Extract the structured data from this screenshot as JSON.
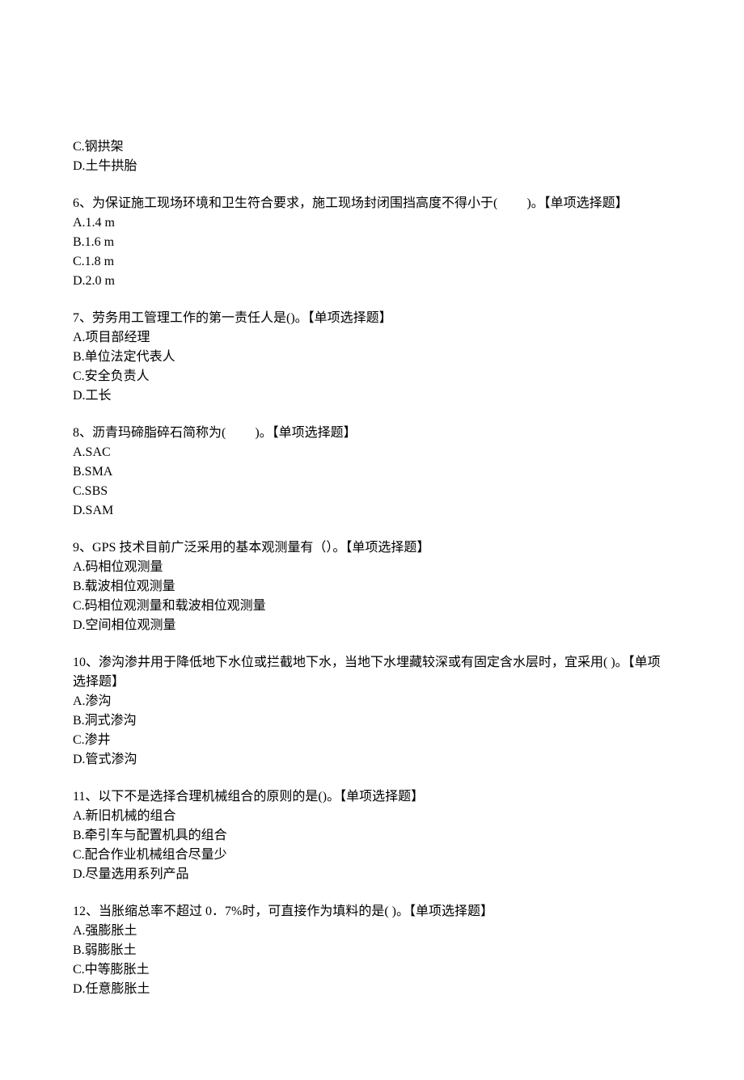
{
  "orphan_options": [
    {
      "label": "C.钢拱架"
    },
    {
      "label": "D.土牛拱胎"
    }
  ],
  "questions": [
    {
      "number": "6、",
      "text": "为保证施工现场环境和卫生符合要求，施工现场封闭围挡高度不得小于(　　 )。【单项选择题】",
      "options": [
        {
          "label": "A.1.4 m"
        },
        {
          "label": "B.1.6 m"
        },
        {
          "label": "C.1.8 m"
        },
        {
          "label": "D.2.0 m"
        }
      ]
    },
    {
      "number": "7、",
      "text": "劳务用工管理工作的第一责任人是()。【单项选择题】",
      "options": [
        {
          "label": "A.项目部经理"
        },
        {
          "label": "B.单位法定代表人"
        },
        {
          "label": "C.安全负责人"
        },
        {
          "label": "D.工长"
        }
      ]
    },
    {
      "number": "8、",
      "text": "沥青玛碲脂碎石简称为(　　 )。【单项选择题】",
      "options": [
        {
          "label": "A.SAC"
        },
        {
          "label": "B.SMA"
        },
        {
          "label": "C.SBS"
        },
        {
          "label": "D.SAM"
        }
      ]
    },
    {
      "number": "9、",
      "text": "GPS 技术目前广泛采用的基本观测量有（）。【单项选择题】",
      "options": [
        {
          "label": "A.码相位观测量"
        },
        {
          "label": "B.载波相位观测量"
        },
        {
          "label": "C.码相位观测量和载波相位观测量"
        },
        {
          "label": "D.空间相位观测量"
        }
      ]
    },
    {
      "number": "10、",
      "text": "渗沟渗井用于降低地下水位或拦截地下水，当地下水埋藏较深或有固定含水层时，宜采用( )。【单项选择题】",
      "options": [
        {
          "label": "A.渗沟"
        },
        {
          "label": "B.洞式渗沟"
        },
        {
          "label": "C.渗井"
        },
        {
          "label": "D.管式渗沟"
        }
      ]
    },
    {
      "number": "11、",
      "text": "以下不是选择合理机械组合的原则的是()。【单项选择题】",
      "options": [
        {
          "label": "A.新旧机械的组合"
        },
        {
          "label": "B.牵引车与配置机具的组合"
        },
        {
          "label": "C.配合作业机械组合尽量少"
        },
        {
          "label": "D.尽量选用系列产品"
        }
      ]
    },
    {
      "number": "12、",
      "text": "当胀缩总率不超过 0．7%时，可直接作为填料的是( )。【单项选择题】",
      "options": [
        {
          "label": "A.强膨胀土"
        },
        {
          "label": "B.弱膨胀土"
        },
        {
          "label": "C.中等膨胀土"
        },
        {
          "label": "D.任意膨胀土"
        }
      ]
    }
  ]
}
